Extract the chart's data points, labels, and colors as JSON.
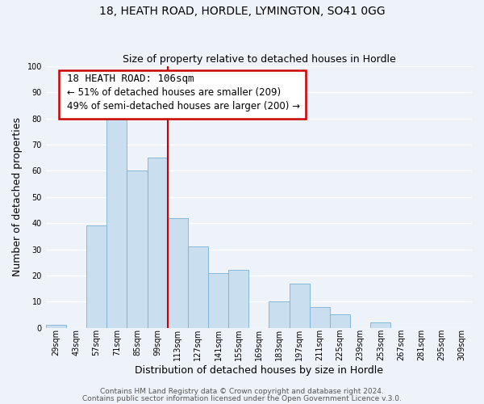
{
  "title": "18, HEATH ROAD, HORDLE, LYMINGTON, SO41 0GG",
  "subtitle": "Size of property relative to detached houses in Hordle",
  "xlabel": "Distribution of detached houses by size in Hordle",
  "ylabel": "Number of detached properties",
  "bar_color": "#c9dff0",
  "bar_edgecolor": "#7ab0d4",
  "bin_labels": [
    "29sqm",
    "43sqm",
    "57sqm",
    "71sqm",
    "85sqm",
    "99sqm",
    "113sqm",
    "127sqm",
    "141sqm",
    "155sqm",
    "169sqm",
    "183sqm",
    "197sqm",
    "211sqm",
    "225sqm",
    "239sqm",
    "253sqm",
    "267sqm",
    "281sqm",
    "295sqm",
    "309sqm"
  ],
  "bar_heights": [
    1,
    0,
    39,
    82,
    60,
    65,
    42,
    31,
    21,
    22,
    0,
    10,
    17,
    8,
    5,
    0,
    2,
    0,
    0,
    0,
    0
  ],
  "ylim": [
    0,
    100
  ],
  "marker_label": "18 HEATH ROAD: 106sqm",
  "smaller_pct": "51%",
  "smaller_count": 209,
  "larger_pct": "49%",
  "larger_count": 200,
  "annotation_line_color": "#cc0000",
  "box_edge_color": "#cc0000",
  "footer_line1": "Contains HM Land Registry data © Crown copyright and database right 2024.",
  "footer_line2": "Contains public sector information licensed under the Open Government Licence v.3.0.",
  "background_color": "#eef2f9",
  "grid_color": "#ffffff",
  "title_fontsize": 10,
  "subtitle_fontsize": 9,
  "axis_label_fontsize": 9,
  "tick_fontsize": 7,
  "footer_fontsize": 6.5,
  "annot_fontsize": 8.5,
  "annot_title_fontsize": 9
}
